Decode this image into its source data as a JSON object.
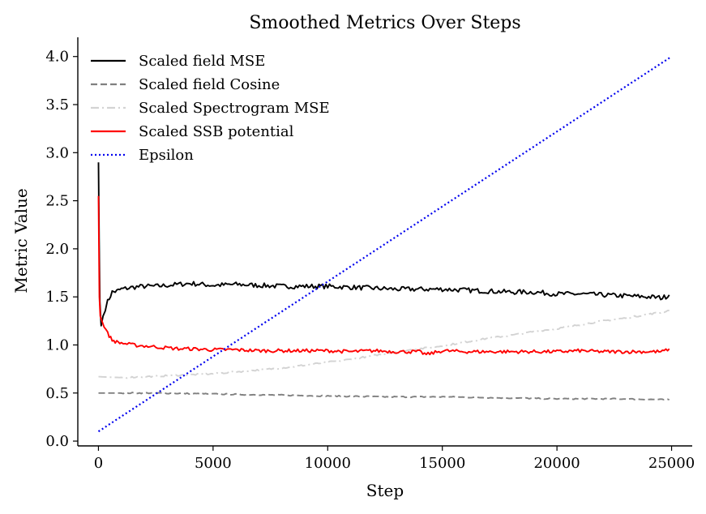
{
  "chart_data": {
    "type": "line",
    "title": "Smoothed Metrics Over Steps",
    "xlabel": "Step",
    "ylabel": "Metric Value",
    "xlim": [
      -900,
      25900
    ],
    "ylim": [
      -0.05,
      4.2
    ],
    "xticks": [
      0,
      5000,
      10000,
      15000,
      20000,
      25000
    ],
    "yticks": [
      0.0,
      0.5,
      1.0,
      1.5,
      2.0,
      2.5,
      3.0,
      3.5,
      4.0
    ],
    "xtick_labels": [
      "0",
      "5000",
      "10000",
      "15000",
      "20000",
      "25000"
    ],
    "ytick_labels": [
      "0.0",
      "0.5",
      "1.0",
      "1.5",
      "2.0",
      "2.5",
      "3.0",
      "3.5",
      "4.0"
    ],
    "grid": false,
    "legend_position": "top-left",
    "series": [
      {
        "name": "Scaled field MSE",
        "color": "#000000",
        "style": "solid",
        "x": [
          0,
          30,
          60,
          120,
          200,
          300,
          400,
          600,
          800,
          1000,
          1500,
          2000,
          2500,
          3000,
          3500,
          4000,
          5000,
          6000,
          7000,
          8000,
          9000,
          10000,
          11000,
          12000,
          13000,
          14000,
          15000,
          16000,
          17000,
          18000,
          19000,
          20000,
          21000,
          22000,
          23000,
          24000,
          24600,
          24900
        ],
        "y": [
          2.9,
          2.1,
          1.45,
          1.2,
          1.3,
          1.38,
          1.45,
          1.55,
          1.56,
          1.58,
          1.6,
          1.61,
          1.61,
          1.62,
          1.63,
          1.64,
          1.62,
          1.63,
          1.62,
          1.61,
          1.61,
          1.61,
          1.6,
          1.59,
          1.58,
          1.58,
          1.58,
          1.57,
          1.56,
          1.55,
          1.55,
          1.53,
          1.53,
          1.52,
          1.51,
          1.5,
          1.49,
          1.52
        ]
      },
      {
        "name": "Scaled field Cosine",
        "color": "#808080",
        "style": "dashed",
        "x": [
          0,
          1000,
          2500,
          5000,
          7500,
          10000,
          12500,
          15000,
          17500,
          20000,
          22500,
          24900
        ],
        "y": [
          0.5,
          0.5,
          0.5,
          0.49,
          0.48,
          0.47,
          0.46,
          0.46,
          0.45,
          0.44,
          0.44,
          0.43
        ]
      },
      {
        "name": "Scaled Spectrogram MSE",
        "color": "#d3d3d3",
        "style": "dashdot",
        "x": [
          0,
          1000,
          2000,
          3000,
          4000,
          5000,
          6000,
          7000,
          8000,
          9000,
          10000,
          11000,
          12000,
          13000,
          14000,
          15000,
          16000,
          17000,
          18000,
          19000,
          20000,
          21000,
          22000,
          23000,
          24000,
          24600,
          24900
        ],
        "y": [
          0.67,
          0.66,
          0.67,
          0.68,
          0.69,
          0.7,
          0.72,
          0.74,
          0.76,
          0.79,
          0.82,
          0.85,
          0.89,
          0.93,
          0.96,
          0.99,
          1.03,
          1.07,
          1.1,
          1.14,
          1.17,
          1.21,
          1.25,
          1.28,
          1.32,
          1.34,
          1.36
        ]
      },
      {
        "name": "Scaled SSB potential",
        "color": "#ff0000",
        "style": "solid",
        "x": [
          0,
          40,
          80,
          150,
          250,
          400,
          600,
          800,
          1000,
          1500,
          2000,
          2500,
          3000,
          3500,
          4000,
          5000,
          6000,
          7000,
          8000,
          9000,
          10000,
          11000,
          12000,
          13000,
          14000,
          14300,
          15000,
          16000,
          17000,
          18000,
          19000,
          20000,
          21000,
          22000,
          23000,
          24000,
          24600,
          24900
        ],
        "y": [
          2.55,
          1.5,
          1.3,
          1.25,
          1.2,
          1.12,
          1.05,
          1.03,
          1.02,
          1.0,
          0.99,
          0.98,
          0.97,
          0.96,
          0.96,
          0.95,
          0.95,
          0.94,
          0.94,
          0.94,
          0.94,
          0.93,
          0.94,
          0.93,
          0.93,
          0.9,
          0.94,
          0.93,
          0.93,
          0.93,
          0.93,
          0.93,
          0.94,
          0.93,
          0.93,
          0.93,
          0.93,
          0.96
        ]
      },
      {
        "name": "Epsilon",
        "color": "#0000ee",
        "style": "dotted",
        "x": [
          0,
          25000
        ],
        "y": [
          0.1,
          4.0
        ]
      }
    ]
  }
}
